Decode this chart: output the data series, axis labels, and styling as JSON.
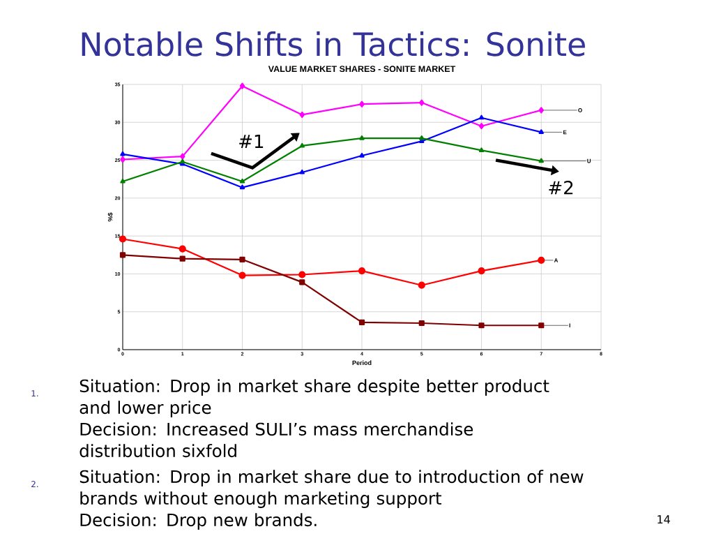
{
  "chart_data": {
    "type": "line",
    "title": "Notable Shifts in Tactics: Sonite",
    "subtitle": "VALUE MARKET SHARES - SONITE MARKET",
    "xlabel": "Period",
    "ylabel": "%$",
    "x": [
      0,
      1,
      2,
      3,
      4,
      5,
      6,
      7
    ],
    "series": [
      {
        "name": "O",
        "color": "#ff00ff",
        "marker": "diamond",
        "values": [
          25.1,
          25.5,
          34.8,
          31.0,
          32.4,
          32.6,
          29.5,
          31.6
        ]
      },
      {
        "name": "E",
        "color": "#0000ff",
        "marker": "triangle",
        "values": [
          25.8,
          24.5,
          21.4,
          23.4,
          25.6,
          27.5,
          30.6,
          28.7
        ]
      },
      {
        "name": "U",
        "color": "#008000",
        "marker": "triangle",
        "values": [
          22.2,
          24.8,
          22.2,
          26.9,
          27.9,
          27.9,
          26.3,
          24.9
        ]
      },
      {
        "name": "A",
        "color": "#ff0000",
        "marker": "circle",
        "values": [
          14.6,
          13.3,
          9.8,
          9.9,
          10.4,
          8.5,
          10.4,
          11.8
        ]
      },
      {
        "name": "I",
        "color": "#800000",
        "marker": "square",
        "values": [
          12.5,
          12.0,
          11.9,
          8.9,
          3.6,
          3.5,
          3.2,
          3.2
        ]
      }
    ],
    "xlim": [
      0,
      8
    ],
    "xticks": [
      0,
      1,
      2,
      3,
      4,
      5,
      6,
      7,
      8
    ],
    "ylim": [
      0,
      35
    ],
    "yticks": [
      0,
      5,
      10,
      15,
      20,
      25,
      30,
      35
    ],
    "grid": true,
    "legend": false,
    "annotations": [
      "#1",
      "#2",
      "1.",
      "Situation: Drop in market share despite better product and lower price",
      "Decision: Increased SULI’s mass merchandise distribution sixfold",
      "2.",
      "Situation: Drop in market share due to introduction of new brands without enough marketing support",
      "Decision: Drop new brands.",
      "14"
    ]
  }
}
